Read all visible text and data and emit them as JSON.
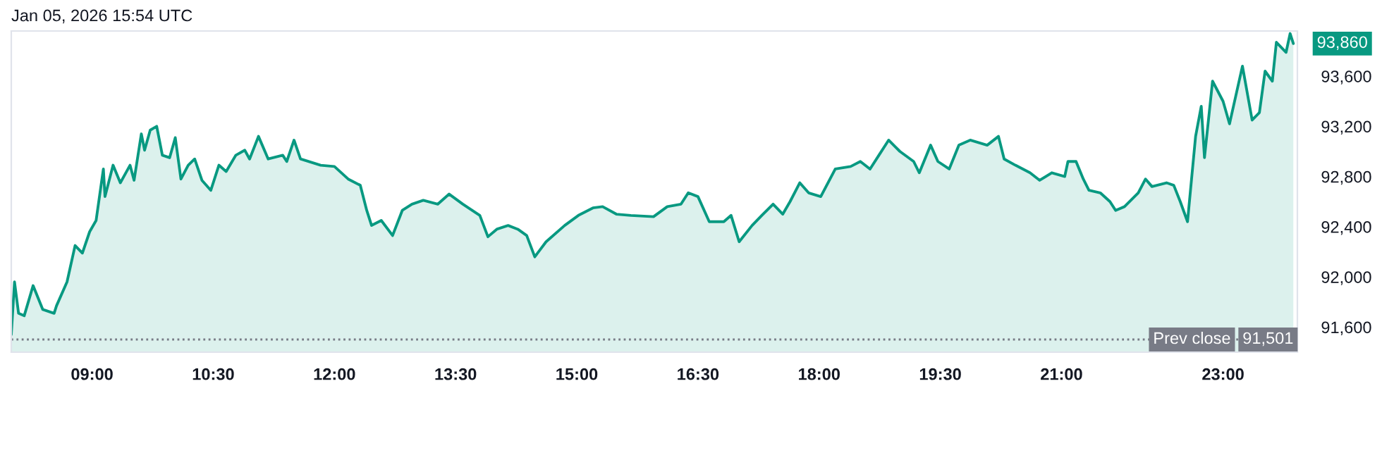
{
  "chart_data": {
    "type": "area",
    "title": "Jan 05, 2026 15:54 UTC",
    "x": [
      8.0,
      8.04,
      8.09,
      8.16,
      8.27,
      8.39,
      8.53,
      8.56,
      8.69,
      8.79,
      8.88,
      8.97,
      9.05,
      9.14,
      9.16,
      9.26,
      9.35,
      9.47,
      9.52,
      9.61,
      9.65,
      9.72,
      9.8,
      9.87,
      9.96,
      10.03,
      10.1,
      10.19,
      10.27,
      10.36,
      10.47,
      10.57,
      10.66,
      10.78,
      10.89,
      10.95,
      11.06,
      11.18,
      11.36,
      11.41,
      11.5,
      11.58,
      11.83,
      12.0,
      12.17,
      12.32,
      12.4,
      12.46,
      12.58,
      12.72,
      12.84,
      12.96,
      13.1,
      13.28,
      13.42,
      13.59,
      13.8,
      13.9,
      14.01,
      14.15,
      14.27,
      14.38,
      14.48,
      14.62,
      14.85,
      15.02,
      15.2,
      15.32,
      15.49,
      15.67,
      15.95,
      16.12,
      16.29,
      16.38,
      16.5,
      16.64,
      16.82,
      16.91,
      17.01,
      17.17,
      17.29,
      17.43,
      17.55,
      17.64,
      17.76,
      17.87,
      18.02,
      18.2,
      18.39,
      18.51,
      18.63,
      18.74,
      18.86,
      19.0,
      19.17,
      19.24,
      19.38,
      19.47,
      19.61,
      19.73,
      19.87,
      20.08,
      20.22,
      20.29,
      20.43,
      20.61,
      20.73,
      20.88,
      21.04,
      21.08,
      21.18,
      21.27,
      21.34,
      21.48,
      21.6,
      21.67,
      21.78,
      21.95,
      22.04,
      22.12,
      22.3,
      22.39,
      22.47,
      22.56,
      22.66,
      22.73,
      22.77,
      22.87,
      23.0,
      23.08,
      23.24,
      23.36,
      23.45,
      23.52,
      23.61,
      23.66,
      23.78,
      23.83,
      23.87
    ],
    "series": [
      {
        "color": "#089981",
        "values": [
          91540,
          91960,
          91710,
          91690,
          91930,
          91740,
          91710,
          91770,
          91960,
          92250,
          92190,
          92360,
          92450,
          92860,
          92640,
          92890,
          92750,
          92890,
          92770,
          93140,
          93010,
          93170,
          93200,
          92970,
          92950,
          93110,
          92780,
          92890,
          92940,
          92770,
          92690,
          92890,
          92840,
          92970,
          93010,
          92940,
          93120,
          92940,
          92970,
          92920,
          93090,
          92940,
          92890,
          92880,
          92780,
          92730,
          92530,
          92410,
          92450,
          92330,
          92530,
          92580,
          92610,
          92580,
          92660,
          92580,
          92490,
          92320,
          92380,
          92410,
          92380,
          92330,
          92160,
          92280,
          92410,
          92490,
          92550,
          92560,
          92500,
          92490,
          92480,
          92560,
          92580,
          92670,
          92640,
          92440,
          92440,
          92490,
          92280,
          92410,
          92490,
          92580,
          92500,
          92600,
          92750,
          92670,
          92640,
          92860,
          92880,
          92920,
          92860,
          92970,
          93090,
          93000,
          92920,
          92830,
          93050,
          92920,
          92860,
          93050,
          93090,
          93050,
          93120,
          92940,
          92890,
          92830,
          92770,
          92830,
          92800,
          92920,
          92920,
          92780,
          92690,
          92670,
          92600,
          92530,
          92560,
          92670,
          92780,
          92720,
          92750,
          92730,
          92600,
          92440,
          93120,
          93360,
          92950,
          93560,
          93400,
          93220,
          93680,
          93250,
          93310,
          93640,
          93560,
          93870,
          93790,
          93940,
          93860
        ]
      }
    ],
    "xlim": [
      8.0,
      23.92
    ],
    "ylim": [
      91400,
      93960
    ],
    "xticks": [
      {
        "value": 9,
        "label": "09:00"
      },
      {
        "value": 10.5,
        "label": "10:30"
      },
      {
        "value": 12,
        "label": "12:00"
      },
      {
        "value": 13.5,
        "label": "13:30"
      },
      {
        "value": 15,
        "label": "15:00"
      },
      {
        "value": 16.5,
        "label": "16:30"
      },
      {
        "value": 18,
        "label": "18:00"
      },
      {
        "value": 19.5,
        "label": "19:30"
      },
      {
        "value": 21,
        "label": "21:00"
      },
      {
        "value": 23,
        "label": "23:00"
      }
    ],
    "yticks": [
      {
        "value": 91600,
        "label": "91,600"
      },
      {
        "value": 92000,
        "label": "92,000"
      },
      {
        "value": 92400,
        "label": "92,400"
      },
      {
        "value": 92800,
        "label": "92,800"
      },
      {
        "value": 93200,
        "label": "93,200"
      },
      {
        "value": 93600,
        "label": "93,600"
      }
    ],
    "ref_lines": [
      {
        "axis": "y",
        "value": 91501,
        "label": "Prev close",
        "color": "#787b86",
        "line_style": "dotted"
      }
    ],
    "annotations": [
      {
        "text": "93,860",
        "x": 23.87,
        "y": 93860
      },
      {
        "text": "91,501",
        "x": 23.92,
        "y": 91501
      }
    ]
  }
}
